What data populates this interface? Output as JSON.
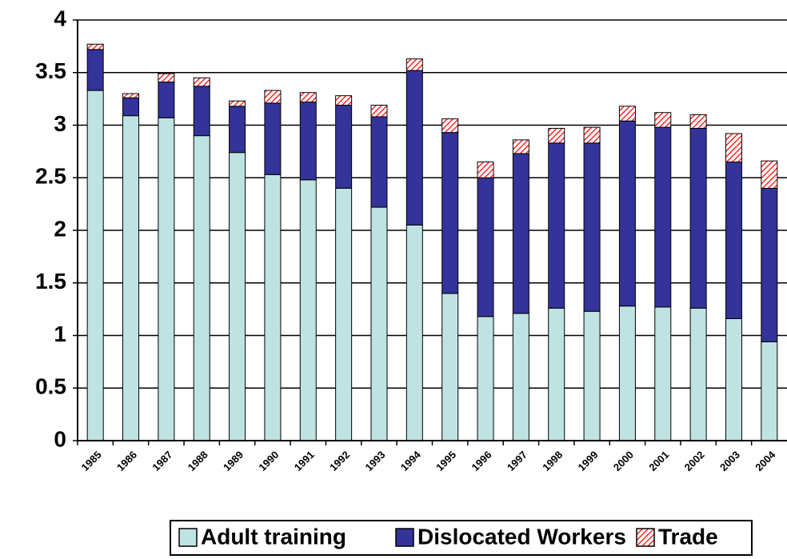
{
  "chart_data": {
    "type": "stacked-bar",
    "categories": [
      "1985",
      "1986",
      "1987",
      "1988",
      "1989",
      "1990",
      "1991",
      "1992",
      "1993",
      "1994",
      "1995",
      "1996",
      "1997",
      "1998",
      "1999",
      "2000",
      "2001",
      "2002",
      "2003",
      "2004"
    ],
    "series": [
      {
        "name": "Adult training",
        "color": "#bfe3e3",
        "values": [
          3.33,
          3.09,
          3.07,
          2.9,
          2.74,
          2.53,
          2.48,
          2.4,
          2.22,
          2.05,
          1.4,
          1.18,
          1.21,
          1.26,
          1.23,
          1.28,
          1.27,
          1.26,
          1.16,
          0.94
        ]
      },
      {
        "name": "Dislocated Workers",
        "color": "#333399",
        "values": [
          0.39,
          0.17,
          0.34,
          0.47,
          0.44,
          0.68,
          0.74,
          0.79,
          0.86,
          1.47,
          1.53,
          1.32,
          1.52,
          1.57,
          1.6,
          1.76,
          1.71,
          1.71,
          1.49,
          1.46
        ]
      },
      {
        "name": "Trade",
        "color": "#ff0000",
        "values": [
          0.05,
          0.04,
          0.08,
          0.08,
          0.05,
          0.12,
          0.09,
          0.09,
          0.11,
          0.11,
          0.13,
          0.15,
          0.13,
          0.14,
          0.15,
          0.14,
          0.14,
          0.13,
          0.27,
          0.26
        ]
      }
    ],
    "ylim": [
      0,
      4
    ],
    "yticks": [
      0,
      0.5,
      1,
      1.5,
      2,
      2.5,
      3,
      3.5,
      4
    ],
    "grid": true,
    "legend": "bottom"
  }
}
